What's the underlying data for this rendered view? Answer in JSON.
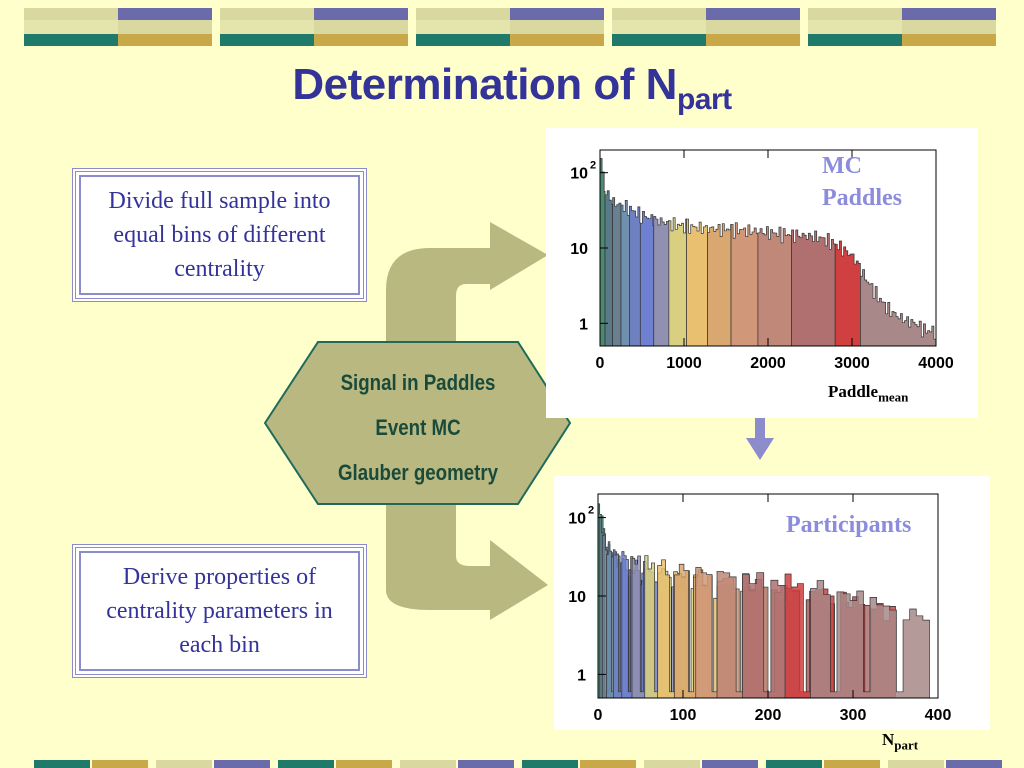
{
  "title": {
    "main": "Determination of N",
    "sub": "part"
  },
  "boxes": {
    "top": "Divide full sample into equal bins of different centrality",
    "bottom": "Derive properties of centrality parameters in each bin"
  },
  "hexagon": {
    "lines": [
      "Signal in Paddles",
      "Event MC",
      "Glauber geometry"
    ]
  },
  "colors": {
    "background": "#ffffcc",
    "title": "#333399",
    "arrow": "#b8b880",
    "hexagon": "#b8b880",
    "down_arrow": "#8c8ccc",
    "deco_navy": "#6b6bab",
    "deco_teal": "#1f7a6a",
    "deco_gold": "#c8a848",
    "deco_pale": "#d8d8a0"
  },
  "chart_data": [
    {
      "type": "bar",
      "label": "MC Paddles",
      "label_lines": [
        "MC",
        "Paddles"
      ],
      "xlabel_main": "Paddle",
      "xlabel_sub": "mean",
      "log_y": true,
      "xlim": [
        0,
        4000
      ],
      "ylim": [
        0.5,
        200
      ],
      "x_ticks": [
        "0",
        "1000",
        "2000",
        "3000",
        "4000"
      ],
      "x_tick_values": [
        0,
        1000,
        2000,
        3000,
        4000
      ],
      "y_ticks": [
        "1",
        "10",
        "10"
      ],
      "y_tick_values": [
        1,
        10,
        100
      ],
      "y_tick_super": [
        "",
        "",
        "2"
      ],
      "band_edges": [
        0,
        60,
        150,
        250,
        350,
        480,
        640,
        820,
        1030,
        1280,
        1560,
        1880,
        2280,
        2800,
        3100,
        4000
      ],
      "band_colors": [
        "#4a8a70",
        "#5a7a8a",
        "#6a8090",
        "#7090b0",
        "#6f80c0",
        "#7080d0",
        "#9090b0",
        "#d8d080",
        "#e8c070",
        "#d8a870",
        "#d09878",
        "#c08878",
        "#b07070",
        "#d04040",
        "#a88888"
      ],
      "histogram_x": [
        20,
        45,
        80,
        120,
        170,
        220,
        280,
        340,
        420,
        520,
        640,
        780,
        940,
        1120,
        1320,
        1540,
        1780,
        2040,
        2320,
        2600,
        2760,
        2880,
        3000,
        3080,
        3160,
        3240,
        3320,
        3420,
        3520,
        3640,
        3760,
        3880
      ],
      "histogram_y": [
        150,
        80,
        55,
        45,
        40,
        38,
        36,
        34,
        30,
        27,
        24,
        22,
        20,
        19,
        18,
        18,
        17,
        16,
        15,
        14,
        12,
        10,
        8,
        6,
        4,
        3,
        2.2,
        1.6,
        1.3,
        1.1,
        1.0,
        0.8
      ]
    },
    {
      "type": "bar",
      "label": "Participants",
      "xlabel_main": "N",
      "xlabel_sub": "part",
      "log_y": true,
      "xlim": [
        0,
        400
      ],
      "ylim": [
        0.5,
        200
      ],
      "x_ticks": [
        "0",
        "100",
        "200",
        "300",
        "400"
      ],
      "x_tick_values": [
        0,
        100,
        200,
        300,
        400
      ],
      "y_ticks": [
        "1",
        "10",
        "10"
      ],
      "y_tick_values": [
        1,
        10,
        100
      ],
      "y_tick_super": [
        "",
        "",
        "2"
      ],
      "bin_ranges": [
        [
          0,
          8
        ],
        [
          2,
          15
        ],
        [
          5,
          25
        ],
        [
          10,
          40
        ],
        [
          18,
          55
        ],
        [
          28,
          75
        ],
        [
          40,
          100
        ],
        [
          55,
          125
        ],
        [
          70,
          155
        ],
        [
          90,
          190
        ],
        [
          115,
          230
        ],
        [
          140,
          275
        ],
        [
          170,
          320
        ],
        [
          220,
          350
        ],
        [
          250,
          390
        ]
      ],
      "bin_peak_y": [
        150,
        90,
        60,
        45,
        38,
        34,
        30,
        28,
        26,
        24,
        22,
        20,
        18,
        16,
        14
      ],
      "band_colors": [
        "#4a8a70",
        "#5a7a8a",
        "#6a8090",
        "#7090b0",
        "#6f80c0",
        "#7080d0",
        "#9090b0",
        "#d8d080",
        "#e8c070",
        "#d8a870",
        "#d09878",
        "#c08878",
        "#b07070",
        "#d04040",
        "#a88888"
      ]
    }
  ]
}
